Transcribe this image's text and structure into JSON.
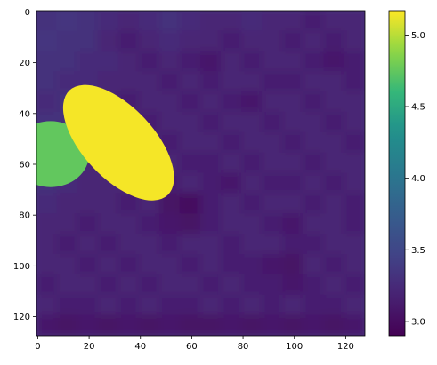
{
  "chart_data": {
    "type": "heatmap",
    "colormap": "viridis",
    "xlim": [
      -0.5,
      127.5
    ],
    "ylim": [
      127.5,
      -0.5
    ],
    "xticks": [
      0,
      20,
      40,
      60,
      80,
      100,
      120
    ],
    "yticks": [
      0,
      20,
      40,
      60,
      80,
      100,
      120
    ],
    "cell_size": 8,
    "z": [
      [
        3.3,
        3.35,
        3.3,
        3.25,
        3.2,
        3.25,
        3.3,
        3.25,
        3.2,
        3.2,
        3.25,
        3.2,
        3.2,
        3.15,
        3.2,
        3.2
      ],
      [
        3.35,
        3.3,
        3.3,
        3.2,
        3.15,
        3.2,
        3.25,
        3.2,
        3.2,
        3.15,
        3.2,
        3.2,
        3.15,
        3.2,
        3.15,
        3.2
      ],
      [
        3.3,
        3.3,
        3.25,
        3.25,
        3.2,
        3.15,
        3.2,
        3.15,
        3.1,
        3.2,
        3.15,
        3.2,
        3.2,
        3.15,
        3.1,
        3.15
      ],
      [
        3.3,
        3.25,
        3.25,
        3.2,
        3.2,
        3.2,
        3.15,
        3.2,
        3.15,
        3.2,
        3.2,
        3.15,
        3.15,
        3.2,
        3.2,
        3.15
      ],
      [
        3.25,
        3.3,
        3.2,
        3.2,
        3.15,
        3.2,
        3.2,
        3.15,
        3.2,
        3.15,
        3.1,
        3.2,
        3.2,
        3.15,
        3.2,
        3.2
      ],
      [
        3.3,
        3.3,
        3.25,
        3.2,
        3.2,
        3.15,
        3.2,
        3.2,
        3.15,
        3.2,
        3.2,
        3.15,
        3.2,
        3.2,
        3.15,
        3.2
      ],
      [
        3.3,
        3.25,
        3.25,
        3.2,
        3.2,
        3.2,
        3.15,
        3.2,
        3.2,
        3.15,
        3.2,
        3.2,
        3.15,
        3.2,
        3.2,
        3.15
      ],
      [
        3.25,
        3.25,
        3.2,
        3.25,
        3.15,
        3.2,
        3.2,
        3.15,
        3.15,
        3.2,
        3.15,
        3.2,
        3.2,
        3.15,
        3.2,
        3.2
      ],
      [
        3.3,
        3.25,
        3.2,
        3.2,
        3.2,
        3.15,
        3.15,
        3.2,
        3.15,
        3.1,
        3.2,
        3.15,
        3.15,
        3.2,
        3.15,
        3.2
      ],
      [
        3.25,
        3.2,
        3.2,
        3.2,
        3.15,
        3.2,
        3.05,
        3.0,
        3.15,
        3.2,
        3.15,
        3.2,
        3.2,
        3.15,
        3.2,
        3.15
      ],
      [
        3.2,
        3.2,
        3.15,
        3.2,
        3.2,
        3.15,
        3.1,
        3.05,
        3.15,
        3.2,
        3.2,
        3.15,
        3.1,
        3.2,
        3.2,
        3.15
      ],
      [
        3.2,
        3.15,
        3.2,
        3.15,
        3.2,
        3.2,
        3.15,
        3.2,
        3.2,
        3.15,
        3.2,
        3.2,
        3.15,
        3.15,
        3.2,
        3.2
      ],
      [
        3.2,
        3.2,
        3.15,
        3.2,
        3.15,
        3.2,
        3.2,
        3.15,
        3.2,
        3.15,
        3.15,
        3.1,
        3.05,
        3.2,
        3.15,
        3.2
      ],
      [
        3.15,
        3.2,
        3.2,
        3.15,
        3.2,
        3.15,
        3.2,
        3.2,
        3.15,
        3.2,
        3.15,
        3.15,
        3.1,
        3.15,
        3.2,
        3.15
      ],
      [
        3.2,
        3.15,
        3.15,
        3.2,
        3.15,
        3.2,
        3.15,
        3.15,
        3.2,
        3.15,
        3.2,
        3.15,
        3.2,
        3.15,
        3.15,
        3.2
      ],
      [
        3.1,
        3.05,
        3.1,
        3.05,
        3.1,
        3.05,
        3.1,
        3.05,
        3.05,
        3.1,
        3.05,
        3.1,
        3.05,
        3.1,
        3.05,
        3.1
      ]
    ],
    "blobs": [
      {
        "value": 4.75,
        "cx": 5,
        "cy": 56,
        "rx": 15,
        "ry": 13,
        "angle": 0
      },
      {
        "value": 5.15,
        "cx": 31.5,
        "cy": 51.5,
        "rx": 28,
        "ry": 14,
        "angle": 47
      }
    ],
    "clim": [
      2.9,
      5.17
    ],
    "cticks": [
      {
        "value": 3,
        "label": "3.0"
      },
      {
        "value": 3.5,
        "label": "3.5"
      },
      {
        "value": 4,
        "label": "4.0"
      },
      {
        "value": 4.5,
        "label": "4.5"
      },
      {
        "value": 5,
        "label": "5.0"
      }
    ]
  }
}
